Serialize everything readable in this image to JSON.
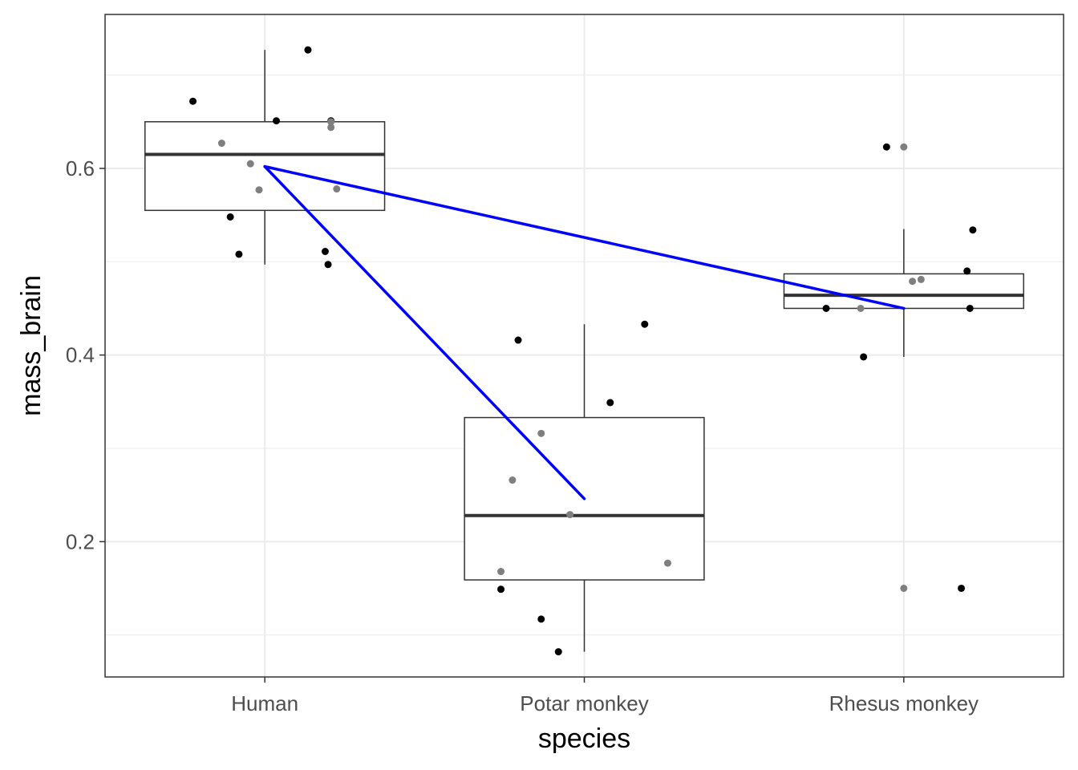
{
  "chart_data": {
    "type": "box",
    "xlabel": "species",
    "ylabel": "mass_brain",
    "categories": [
      "Human",
      "Potar monkey",
      "Rhesus monkey"
    ],
    "ylim": [
      0.055,
      0.765
    ],
    "yticks": [
      0.2,
      0.4,
      0.6
    ],
    "ytick_labels": [
      "0.2",
      "0.4",
      "0.6"
    ],
    "grid": true,
    "colors": {
      "panel_border": "#333333",
      "grid": "#ebebeb",
      "box_line": "#333333",
      "trend_line": "#0000ff",
      "point_black": "#000000",
      "point_gray": "#7f7f7f"
    },
    "boxes": [
      {
        "category": "Human",
        "whisker_low": 0.497,
        "q1": 0.555,
        "median": 0.615,
        "q3": 0.65,
        "whisker_high": 0.727
      },
      {
        "category": "Potar monkey",
        "whisker_low": 0.082,
        "q1": 0.159,
        "median": 0.228,
        "q3": 0.333,
        "whisker_high": 0.433
      },
      {
        "category": "Rhesus monkey",
        "whisker_low": 0.398,
        "q1": 0.45,
        "median": 0.464,
        "q3": 0.487,
        "whisker_high": 0.535
      }
    ],
    "means_line": {
      "segments": [
        [
          {
            "x": "Human",
            "y": 0.602
          },
          {
            "x": "Potar monkey",
            "y": 0.246
          }
        ],
        [
          {
            "x": "Human",
            "y": 0.602
          },
          {
            "x": "Rhesus monkey",
            "y": 0.45
          }
        ]
      ]
    },
    "points": [
      {
        "category": "Human",
        "jitter": -0.25,
        "y": 0.672,
        "shade": "black"
      },
      {
        "category": "Human",
        "jitter": 0.15,
        "y": 0.727,
        "shade": "black"
      },
      {
        "category": "Human",
        "jitter": 0.04,
        "y": 0.651,
        "shade": "black"
      },
      {
        "category": "Human",
        "jitter": 0.23,
        "y": 0.651,
        "shade": "black"
      },
      {
        "category": "Human",
        "jitter": 0.23,
        "y": 0.65,
        "shade": "gray"
      },
      {
        "category": "Human",
        "jitter": 0.23,
        "y": 0.644,
        "shade": "gray"
      },
      {
        "category": "Human",
        "jitter": -0.15,
        "y": 0.627,
        "shade": "gray"
      },
      {
        "category": "Human",
        "jitter": -0.05,
        "y": 0.605,
        "shade": "gray"
      },
      {
        "category": "Human",
        "jitter": -0.02,
        "y": 0.577,
        "shade": "gray"
      },
      {
        "category": "Human",
        "jitter": 0.25,
        "y": 0.578,
        "shade": "gray"
      },
      {
        "category": "Human",
        "jitter": -0.12,
        "y": 0.548,
        "shade": "black"
      },
      {
        "category": "Human",
        "jitter": 0.21,
        "y": 0.511,
        "shade": "black"
      },
      {
        "category": "Human",
        "jitter": -0.09,
        "y": 0.508,
        "shade": "black"
      },
      {
        "category": "Human",
        "jitter": 0.22,
        "y": 0.497,
        "shade": "black"
      },
      {
        "category": "Potar monkey",
        "jitter": -0.23,
        "y": 0.416,
        "shade": "black"
      },
      {
        "category": "Potar monkey",
        "jitter": 0.21,
        "y": 0.433,
        "shade": "black"
      },
      {
        "category": "Potar monkey",
        "jitter": 0.09,
        "y": 0.349,
        "shade": "black"
      },
      {
        "category": "Potar monkey",
        "jitter": -0.15,
        "y": 0.316,
        "shade": "gray"
      },
      {
        "category": "Potar monkey",
        "jitter": -0.25,
        "y": 0.266,
        "shade": "gray"
      },
      {
        "category": "Potar monkey",
        "jitter": -0.05,
        "y": 0.229,
        "shade": "gray"
      },
      {
        "category": "Potar monkey",
        "jitter": 0.29,
        "y": 0.177,
        "shade": "gray"
      },
      {
        "category": "Potar monkey",
        "jitter": -0.29,
        "y": 0.168,
        "shade": "gray"
      },
      {
        "category": "Potar monkey",
        "jitter": -0.29,
        "y": 0.149,
        "shade": "black"
      },
      {
        "category": "Potar monkey",
        "jitter": -0.15,
        "y": 0.117,
        "shade": "black"
      },
      {
        "category": "Potar monkey",
        "jitter": -0.09,
        "y": 0.082,
        "shade": "black"
      },
      {
        "category": "Rhesus monkey",
        "jitter": -0.06,
        "y": 0.623,
        "shade": "black"
      },
      {
        "category": "Rhesus monkey",
        "jitter": 0.0,
        "y": 0.623,
        "shade": "gray"
      },
      {
        "category": "Rhesus monkey",
        "jitter": 0.24,
        "y": 0.534,
        "shade": "black"
      },
      {
        "category": "Rhesus monkey",
        "jitter": 0.22,
        "y": 0.49,
        "shade": "black"
      },
      {
        "category": "Rhesus monkey",
        "jitter": 0.06,
        "y": 0.481,
        "shade": "gray"
      },
      {
        "category": "Rhesus monkey",
        "jitter": 0.03,
        "y": 0.479,
        "shade": "gray"
      },
      {
        "category": "Rhesus monkey",
        "jitter": -0.27,
        "y": 0.45,
        "shade": "black"
      },
      {
        "category": "Rhesus monkey",
        "jitter": -0.15,
        "y": 0.45,
        "shade": "gray"
      },
      {
        "category": "Rhesus monkey",
        "jitter": 0.23,
        "y": 0.45,
        "shade": "black"
      },
      {
        "category": "Rhesus monkey",
        "jitter": -0.14,
        "y": 0.398,
        "shade": "black"
      },
      {
        "category": "Rhesus monkey",
        "jitter": 0.0,
        "y": 0.15,
        "shade": "gray"
      },
      {
        "category": "Rhesus monkey",
        "jitter": 0.2,
        "y": 0.15,
        "shade": "black"
      }
    ]
  }
}
